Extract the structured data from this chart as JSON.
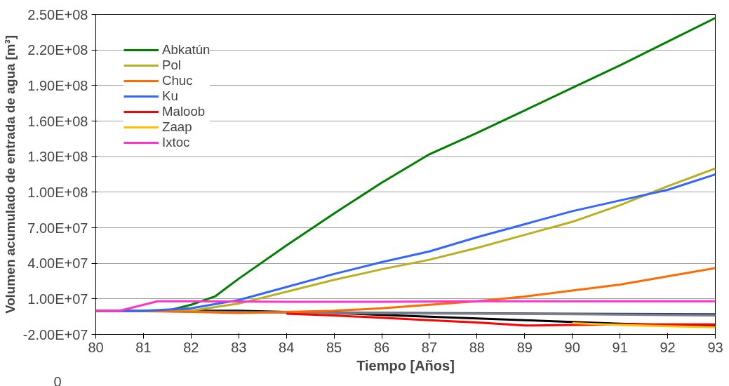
{
  "chart_data": {
    "type": "line",
    "xlabel": "Tiempo [Años]",
    "ylabel": "Volumen acumulado de entrada de agua [m³]",
    "xlim": [
      80,
      93
    ],
    "xticks": [
      80,
      81,
      82,
      83,
      84,
      85,
      86,
      87,
      88,
      89,
      90,
      91,
      92,
      93
    ],
    "ylim": [
      -20000000,
      250000000
    ],
    "yticks": [
      {
        "value": -20000000,
        "label": "-2.00E+07"
      },
      {
        "value": 10000000,
        "label": "1.00E+07"
      },
      {
        "value": 40000000,
        "label": "4.00E+07"
      },
      {
        "value": 70000000,
        "label": "7.00E+07"
      },
      {
        "value": 100000000,
        "label": "1.00E+08"
      },
      {
        "value": 130000000,
        "label": "1.30E+08"
      },
      {
        "value": 160000000,
        "label": "1.60E+08"
      },
      {
        "value": 190000000,
        "label": "1.90E+08"
      },
      {
        "value": 220000000,
        "label": "2.20E+08"
      },
      {
        "value": 250000000,
        "label": "2.50E+08"
      }
    ],
    "grid": "y",
    "legend": "top left",
    "marker": "none",
    "annotations": [
      "0"
    ],
    "series": [
      {
        "name": "Abkatún",
        "color": "#008000",
        "x": [
          80,
          81,
          81.5,
          82,
          82.5,
          83,
          84,
          85,
          86,
          87,
          88,
          89,
          90,
          91,
          92,
          93
        ],
        "values": [
          0,
          0,
          0,
          5000000,
          12000000,
          27000000,
          55000000,
          82000000,
          108000000,
          132000000,
          150000000,
          169000000,
          188000000,
          207000000,
          227000000,
          247000000
        ]
      },
      {
        "name": "Pol",
        "color": "#b8b020",
        "x": [
          80,
          81,
          82,
          83,
          84,
          85,
          86,
          87,
          88,
          89,
          90,
          91,
          92,
          93
        ],
        "values": [
          0,
          0,
          0,
          6000000,
          16000000,
          26000000,
          35000000,
          43000000,
          53000000,
          64000000,
          75000000,
          89000000,
          105000000,
          120000000
        ]
      },
      {
        "name": "Chuc",
        "color": "#ff6a00",
        "x": [
          80,
          81,
          82,
          83,
          84,
          85,
          86,
          87,
          88,
          89,
          90,
          91,
          92,
          93
        ],
        "values": [
          0,
          0,
          -1000000,
          -2000000,
          -1000000,
          0,
          2000000,
          5000000,
          8000000,
          12000000,
          17000000,
          22000000,
          29000000,
          36000000
        ]
      },
      {
        "name": "Ku",
        "color": "#3366ff",
        "x": [
          80,
          81,
          82,
          83,
          84,
          85,
          86,
          87,
          88,
          89,
          90,
          91,
          92,
          93
        ],
        "values": [
          0,
          0,
          2000000,
          9000000,
          20000000,
          31000000,
          41000000,
          50000000,
          62000000,
          73000000,
          84000000,
          93000000,
          102000000,
          115000000
        ]
      },
      {
        "name": "Maloob",
        "color": "#ff0000",
        "x": [
          84,
          85,
          86,
          87,
          88,
          89,
          90,
          91,
          92,
          93
        ],
        "values": [
          -2500000,
          -4000000,
          -6000000,
          -8000000,
          -10000000,
          -12500000,
          -12000000,
          -11500000,
          -11500000,
          -11500000
        ]
      },
      {
        "name": "Zaap",
        "color": "#ffc000",
        "x": [
          90,
          91,
          92,
          93
        ],
        "values": [
          -10500000,
          -12000000,
          -13000000,
          -14000000
        ]
      },
      {
        "name": "Ixtoc",
        "color": "#ff33cc",
        "x": [
          80,
          80.5,
          81.3,
          82,
          84,
          86,
          88,
          90,
          92,
          93
        ],
        "values": [
          0,
          0,
          8000000,
          8000000,
          7500000,
          7500000,
          8000000,
          8000000,
          8000000,
          8000000
        ]
      },
      {
        "color": "#000000",
        "x": [
          80,
          81,
          82,
          83,
          84,
          85,
          86,
          87,
          88,
          89,
          90,
          91,
          92,
          93
        ],
        "values": [
          0,
          0,
          0,
          0,
          -1000000,
          -2000000,
          -3500000,
          -5000000,
          -6500000,
          -8000000,
          -9500000,
          -11000000,
          -12000000,
          -13000000
        ]
      },
      {
        "color": "#1f3f7f",
        "x": [
          80,
          85,
          90,
          93
        ],
        "values": [
          0,
          -1500000,
          -2500000,
          -3000000
        ]
      },
      {
        "color": "#808080",
        "x": [
          80,
          85,
          90,
          93
        ],
        "values": [
          0,
          -2000000,
          -3000000,
          -4000000
        ]
      }
    ]
  }
}
